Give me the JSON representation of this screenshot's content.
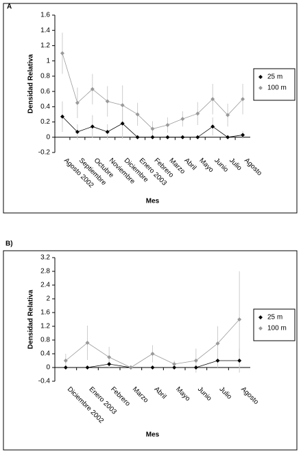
{
  "chart_data": [
    {
      "type": "line",
      "label": "A",
      "y_label": "Densidad Relativa",
      "x_label": "Mes",
      "categories": [
        "Agosto 2002",
        "Septiembre",
        "Octubre",
        "Noviembre",
        "Diciembre",
        "Enero 2003",
        "Febrero",
        "Marzo",
        "Abril",
        "Mayo",
        "Junio",
        "Julio",
        "Agosto"
      ],
      "series": [
        {
          "name": "25 m",
          "color": "#000000",
          "values": [
            0.27,
            0.07,
            0.14,
            0.07,
            0.18,
            0,
            0,
            0,
            0,
            0,
            0.14,
            0,
            0.03
          ],
          "errors": [
            0.2,
            0.1,
            0.15,
            0.1,
            0.2,
            0,
            0,
            0,
            0,
            0,
            0.12,
            0,
            0.05
          ]
        },
        {
          "name": "100 m",
          "color": "#999999",
          "values": [
            1.1,
            0.45,
            0.63,
            0.47,
            0.42,
            0.3,
            0.11,
            0.16,
            0.24,
            0.31,
            0.5,
            0.29,
            0.5
          ],
          "errors": [
            0.27,
            0.2,
            0.2,
            0.2,
            0.26,
            0.15,
            0.1,
            0.1,
            0.1,
            0.15,
            0.2,
            0.15,
            0.2
          ]
        }
      ],
      "ylim": [
        -0.2,
        1.6
      ],
      "yticks": [
        -0.2,
        0,
        0.2,
        0.4,
        0.6,
        0.8,
        1,
        1.2,
        1.4,
        1.6
      ],
      "legend": "right"
    },
    {
      "type": "line",
      "label": "B)",
      "y_label": "Densidad Relativa",
      "x_label": "Mes",
      "categories": [
        "Diciembre 2002",
        "Enero 2003",
        "Febrero",
        "Marzo",
        "Abril",
        "Mayo",
        "Junio",
        "Julio",
        "Agosto"
      ],
      "series": [
        {
          "name": "25 m",
          "color": "#000000",
          "values": [
            0,
            0,
            0.1,
            0,
            0,
            0,
            0,
            0.2,
            0.2
          ],
          "errors": [
            0,
            0,
            0.1,
            0,
            0,
            0,
            0,
            0.2,
            0.35
          ]
        },
        {
          "name": "100 m",
          "color": "#999999",
          "values": [
            0.2,
            0.72,
            0.3,
            0,
            0.4,
            0.1,
            0.2,
            0.7,
            1.4
          ],
          "errors": [
            0.2,
            0.5,
            0.3,
            0,
            0.25,
            0.1,
            0.35,
            0.5,
            1.4
          ]
        }
      ],
      "ylim": [
        -0.4,
        3.2
      ],
      "yticks": [
        -0.4,
        0,
        0.4,
        0.8,
        1.2,
        1.6,
        2,
        2.4,
        2.8,
        3.2
      ],
      "legend": "right"
    }
  ]
}
